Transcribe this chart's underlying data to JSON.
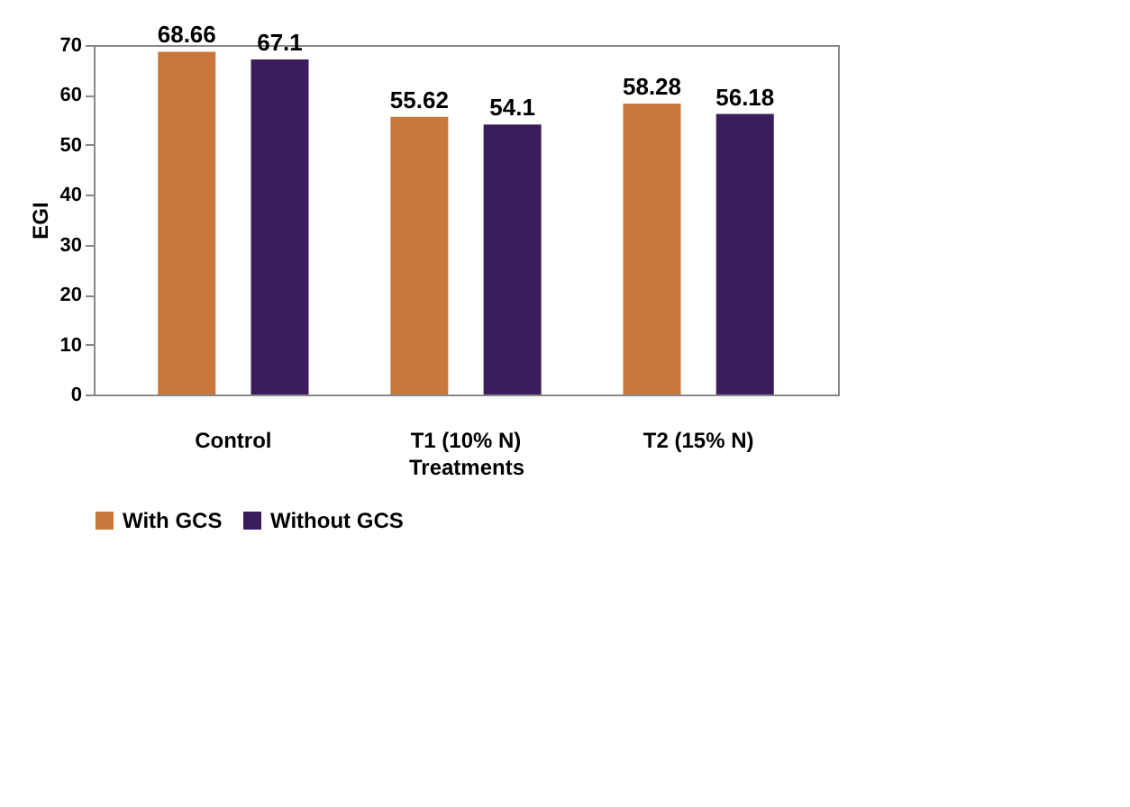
{
  "chart_data": {
    "type": "bar",
    "xlabel": "Treatments",
    "ylabel": "EGI",
    "categories": [
      "Control",
      "T1 (10% N)",
      "T2 (15% N)"
    ],
    "series": [
      {
        "name": "With GCS",
        "color": "#c8783c",
        "values": [
          68.66,
          55.62,
          58.28
        ]
      },
      {
        "name": "Without GCS",
        "color": "#3b1d5c",
        "values": [
          67.1,
          54.1,
          56.18
        ]
      }
    ],
    "ylim": [
      0,
      70
    ],
    "yticks": [
      0,
      10,
      20,
      30,
      40,
      50,
      60,
      70
    ],
    "grid": false,
    "legend": "bottom",
    "data_labels": true
  }
}
